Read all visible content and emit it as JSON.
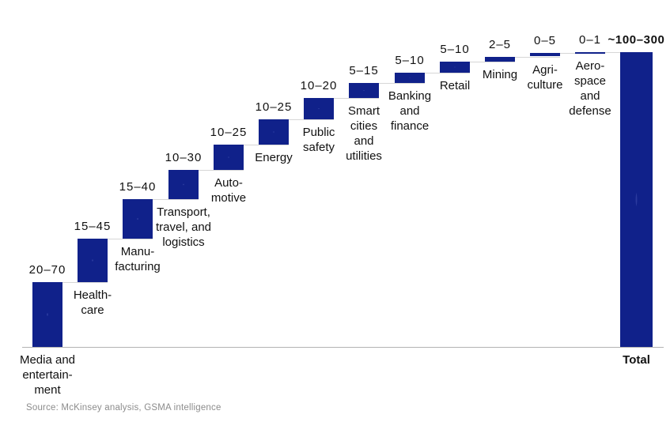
{
  "chart_data": {
    "type": "waterfall",
    "source": "Source: McKinsey analysis, GSMA intelligence",
    "legend": false,
    "grid": false,
    "categories": [
      {
        "name": "Media and entertainment",
        "label_lines": [
          "Media and",
          "entertain-",
          "ment"
        ],
        "range_label": "20–70",
        "min": 20,
        "max": 70,
        "mid": 45
      },
      {
        "name": "Healthcare",
        "label_lines": [
          "Health-",
          "care"
        ],
        "range_label": "15–45",
        "min": 15,
        "max": 45,
        "mid": 30
      },
      {
        "name": "Manufacturing",
        "label_lines": [
          "Manu-",
          "facturing"
        ],
        "range_label": "15–40",
        "min": 15,
        "max": 40,
        "mid": 27.5
      },
      {
        "name": "Transport, travel, and logistics",
        "label_lines": [
          "Transport,",
          "travel, and",
          "logistics"
        ],
        "range_label": "10–30",
        "min": 10,
        "max": 30,
        "mid": 20
      },
      {
        "name": "Automotive",
        "label_lines": [
          "Auto-",
          "motive"
        ],
        "range_label": "10–25",
        "min": 10,
        "max": 25,
        "mid": 17.5
      },
      {
        "name": "Energy",
        "label_lines": [
          "Energy"
        ],
        "range_label": "10–25",
        "min": 10,
        "max": 25,
        "mid": 17.5
      },
      {
        "name": "Public safety",
        "label_lines": [
          "Public",
          "safety"
        ],
        "range_label": "10–20",
        "min": 10,
        "max": 20,
        "mid": 15
      },
      {
        "name": "Smart cities and utilities",
        "label_lines": [
          "Smart",
          "cities",
          "and",
          "utilities"
        ],
        "range_label": "5–15",
        "min": 5,
        "max": 15,
        "mid": 10
      },
      {
        "name": "Banking and finance",
        "label_lines": [
          "Banking",
          "and",
          "finance"
        ],
        "range_label": "5–10",
        "min": 5,
        "max": 10,
        "mid": 7.5
      },
      {
        "name": "Retail",
        "label_lines": [
          "Retail"
        ],
        "range_label": "5–10",
        "min": 5,
        "max": 10,
        "mid": 7.5
      },
      {
        "name": "Mining",
        "label_lines": [
          "Mining"
        ],
        "range_label": "2–5",
        "min": 2,
        "max": 5,
        "mid": 3.5
      },
      {
        "name": "Agriculture",
        "label_lines": [
          "Agri-",
          "culture"
        ],
        "range_label": "0–5",
        "min": 0,
        "max": 5,
        "mid": 2.5
      },
      {
        "name": "Aerospace and defense",
        "label_lines": [
          "Aero-",
          "space",
          "and",
          "defense"
        ],
        "range_label": "0–1",
        "min": 0,
        "max": 1,
        "mid": 0.5
      }
    ],
    "total": {
      "label": "Total",
      "range_label": "~100–300",
      "min": 100,
      "max": 300
    },
    "colors": {
      "bar": "#10218a",
      "bar_dot": "#2a3a9e",
      "connector": "#d6d6d6",
      "baseline": "#b3b3b3",
      "text": "#111111",
      "source_text": "#8c8c8c"
    }
  }
}
